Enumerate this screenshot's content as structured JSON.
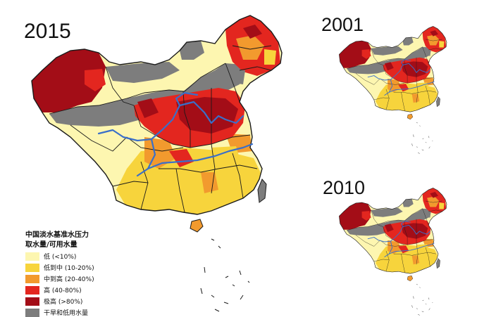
{
  "maps": [
    {
      "year": "2015"
    },
    {
      "year": "2001"
    },
    {
      "year": "2010"
    }
  ],
  "legend": {
    "title": "中国淡水基准水压力",
    "subtitle": "取水量/可用水量",
    "items": [
      {
        "label": "低 (<10%)",
        "color": "#fdf6b0"
      },
      {
        "label": "低到中 (10-20%)",
        "color": "#f7d43c"
      },
      {
        "label": "中到高 (20-40%)",
        "color": "#f29a2e"
      },
      {
        "label": "高 (40-80%)",
        "color": "#e3261f"
      },
      {
        "label": "极高 (>80%)",
        "color": "#a30d17"
      },
      {
        "label": "干旱和低用水量",
        "color": "#7d7d7d"
      }
    ]
  },
  "colors": {
    "river": "#3a6fc9",
    "border": "#1a1a1a",
    "background": "#ffffff"
  }
}
